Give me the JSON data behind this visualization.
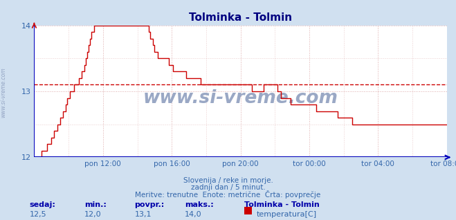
{
  "title": "Tolminka - Tolmin",
  "title_color": "#000080",
  "bg_color": "#d0e0f0",
  "plot_bg_color": "#ffffff",
  "line_color": "#cc0000",
  "avg_line_color": "#cc0000",
  "avg_line_value": 13.1,
  "xaxis_color": "#0000bb",
  "yaxis_color": "#3366aa",
  "ylim": [
    12,
    14
  ],
  "yticks": [
    12,
    13,
    14
  ],
  "xlabel_color": "#3366aa",
  "grid_color": "#ddaaaa",
  "text_color": "#3366aa",
  "footer_line1": "Slovenija / reke in morje.",
  "footer_line2": "zadnji dan / 5 minut.",
  "footer_line3": "Meritve: trenutne  Enote: metrične  Črta: povprečje",
  "label_sedaj": "sedaj:",
  "label_min": "min.:",
  "label_povpr": "povpr.:",
  "label_maks": "maks.:",
  "val_sedaj": "12,5",
  "val_min": "12,0",
  "val_povpr": "13,1",
  "val_maks": "14,0",
  "legend_title": "Tolminka - Tolmin",
  "legend_label": "temperatura[C]",
  "legend_color": "#cc0000",
  "watermark": "www.si-vreme.com",
  "watermark_color": "#8899bb",
  "sidebar_text": "www.si-vreme.com",
  "xtick_labels": [
    "pon 12:00",
    "pon 16:00",
    "pon 20:00",
    "tor 00:00",
    "tor 04:00",
    "tor 08:00"
  ],
  "n_points": 289,
  "data_y": [
    12.0,
    12.0,
    12.0,
    12.0,
    12.0,
    12.1,
    12.1,
    12.1,
    12.1,
    12.2,
    12.2,
    12.2,
    12.3,
    12.3,
    12.4,
    12.4,
    12.5,
    12.5,
    12.6,
    12.6,
    12.7,
    12.7,
    12.8,
    12.9,
    12.9,
    13.0,
    13.0,
    13.0,
    13.1,
    13.1,
    13.1,
    13.2,
    13.2,
    13.3,
    13.3,
    13.4,
    13.5,
    13.6,
    13.7,
    13.8,
    13.9,
    13.9,
    14.0,
    14.0,
    14.0,
    14.0,
    14.0,
    14.0,
    14.0,
    14.0,
    14.0,
    14.0,
    14.0,
    14.0,
    14.0,
    14.0,
    14.0,
    14.0,
    14.0,
    14.0,
    14.0,
    14.0,
    14.0,
    14.0,
    14.0,
    14.0,
    14.0,
    14.0,
    14.0,
    14.0,
    14.0,
    14.0,
    14.0,
    14.0,
    14.0,
    14.0,
    14.0,
    14.0,
    14.0,
    14.0,
    13.9,
    13.8,
    13.8,
    13.7,
    13.6,
    13.6,
    13.5,
    13.5,
    13.5,
    13.5,
    13.5,
    13.5,
    13.5,
    13.5,
    13.4,
    13.4,
    13.4,
    13.3,
    13.3,
    13.3,
    13.3,
    13.3,
    13.3,
    13.3,
    13.3,
    13.3,
    13.2,
    13.2,
    13.2,
    13.2,
    13.2,
    13.2,
    13.2,
    13.2,
    13.2,
    13.2,
    13.1,
    13.1,
    13.1,
    13.1,
    13.1,
    13.1,
    13.1,
    13.1,
    13.1,
    13.1,
    13.1,
    13.1,
    13.1,
    13.1,
    13.1,
    13.1,
    13.1,
    13.1,
    13.1,
    13.1,
    13.1,
    13.1,
    13.1,
    13.1,
    13.1,
    13.1,
    13.1,
    13.1,
    13.1,
    13.1,
    13.1,
    13.1,
    13.1,
    13.1,
    13.1,
    13.1,
    13.0,
    13.0,
    13.0,
    13.0,
    13.0,
    13.0,
    13.0,
    13.0,
    13.1,
    13.1,
    13.1,
    13.1,
    13.1,
    13.1,
    13.1,
    13.1,
    13.1,
    13.1,
    13.0,
    13.0,
    12.9,
    12.9,
    12.9,
    12.9,
    12.9,
    12.9,
    12.9,
    12.8,
    12.8,
    12.8,
    12.8,
    12.8,
    12.8,
    12.8,
    12.8,
    12.8,
    12.8,
    12.8,
    12.8,
    12.8,
    12.8,
    12.8,
    12.8,
    12.8,
    12.8,
    12.7,
    12.7,
    12.7,
    12.7,
    12.7,
    12.7,
    12.7,
    12.7,
    12.7,
    12.7,
    12.7,
    12.7,
    12.7,
    12.7,
    12.7,
    12.6,
    12.6,
    12.6,
    12.6,
    12.6,
    12.6,
    12.6,
    12.6,
    12.6,
    12.6,
    12.5,
    12.5,
    12.5,
    12.5,
    12.5,
    12.5,
    12.5,
    12.5,
    12.5,
    12.5,
    12.5,
    12.5,
    12.5,
    12.5,
    12.5,
    12.5,
    12.5,
    12.5,
    12.5,
    12.5,
    12.5,
    12.5,
    12.5,
    12.5,
    12.5,
    12.5,
    12.5,
    12.5,
    12.5,
    12.5,
    12.5,
    12.5,
    12.5,
    12.5,
    12.5,
    12.5,
    12.5,
    12.5,
    12.5,
    12.5,
    12.5,
    12.5,
    12.5,
    12.5,
    12.5,
    12.5,
    12.5,
    12.5,
    12.5,
    12.5,
    12.5,
    12.5,
    12.5,
    12.5,
    12.5,
    12.5,
    12.5,
    12.5,
    12.5,
    12.5,
    12.5,
    12.5,
    12.5,
    12.5,
    12.5,
    12.5,
    12.5
  ]
}
